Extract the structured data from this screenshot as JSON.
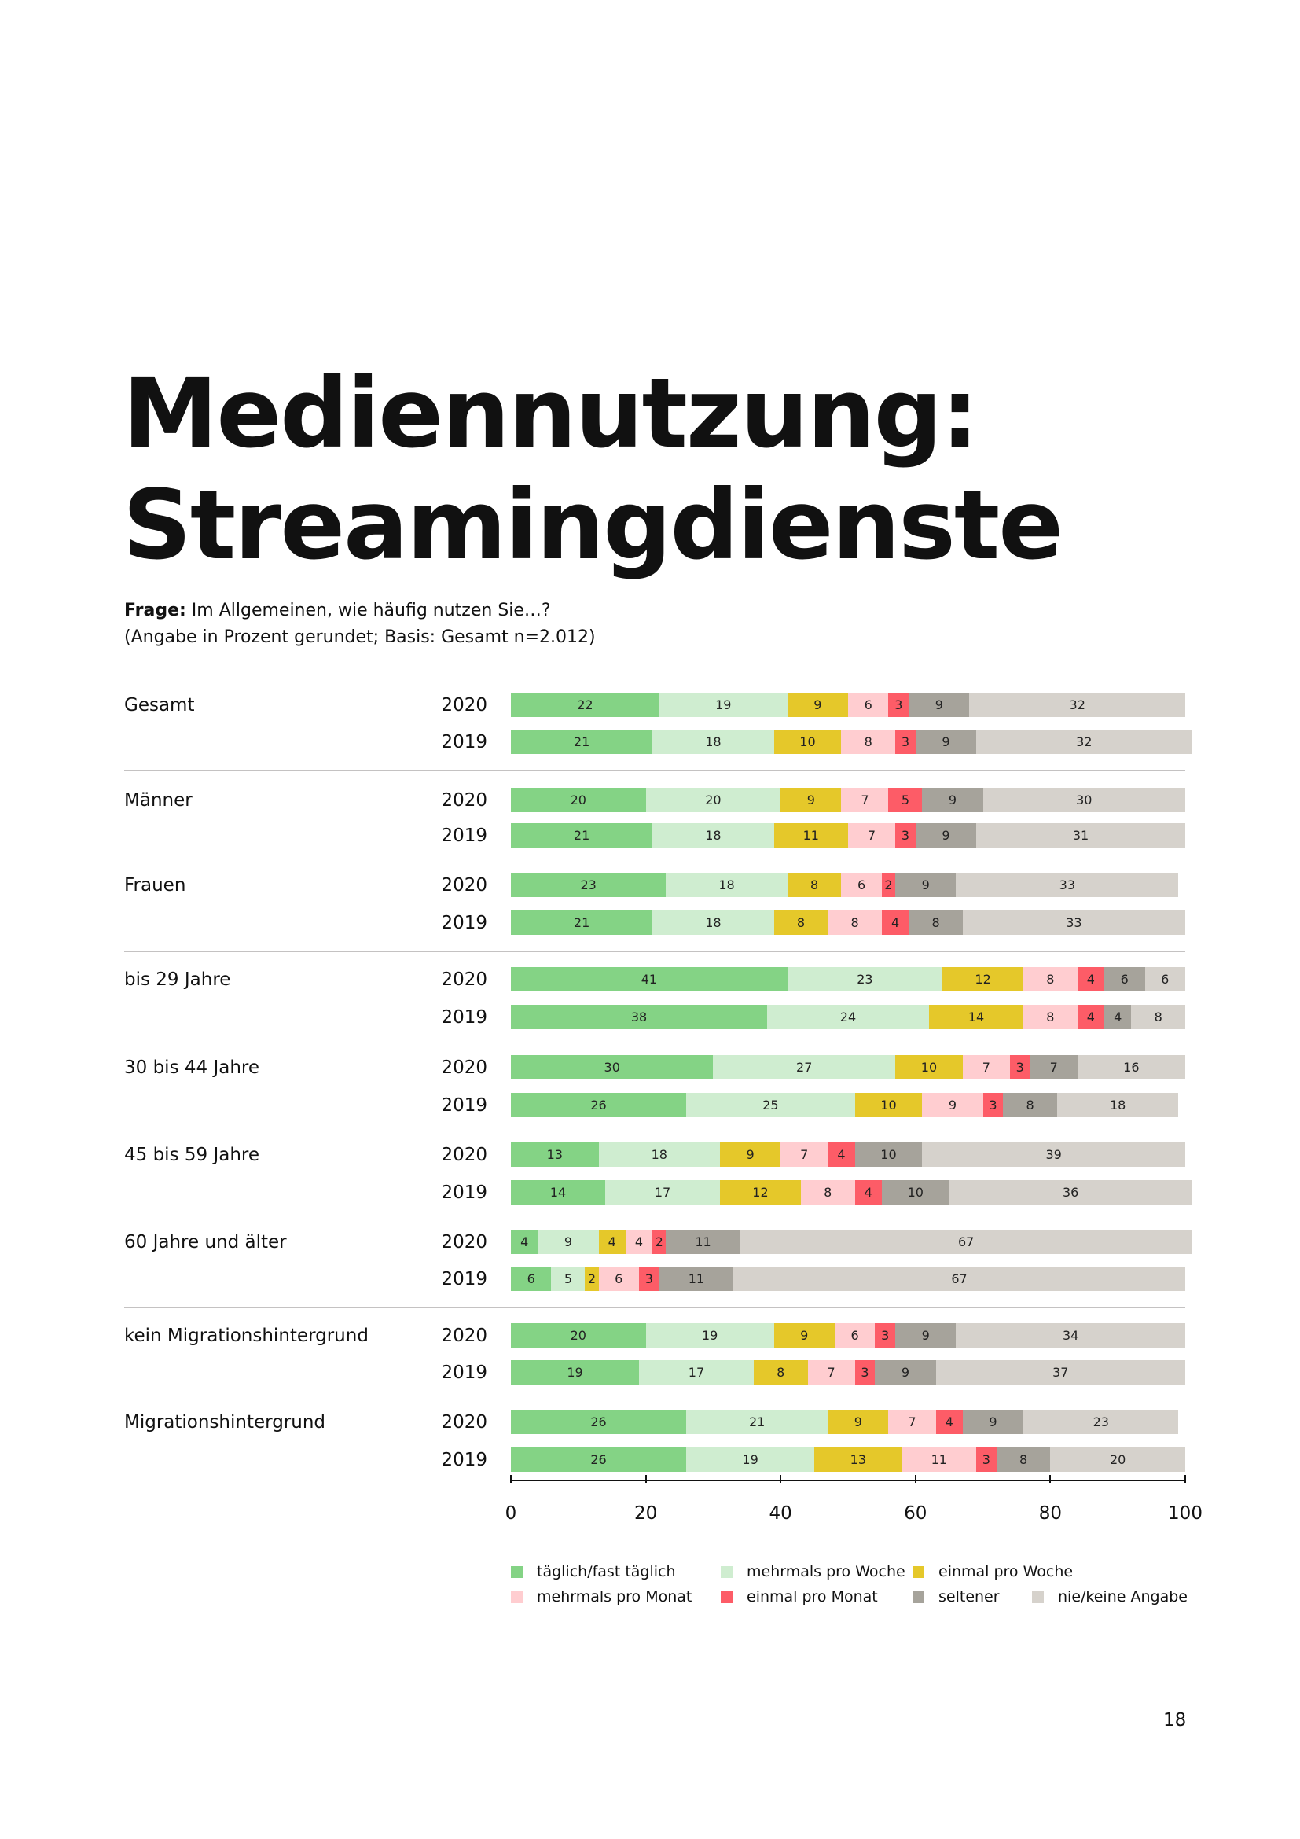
{
  "title_lines": [
    "Mediennutzung:",
    "Streamingdienste"
  ],
  "question": {
    "label": "Frage:",
    "text": " Im Allgemeinen, wie häufig nutzen Sie…?",
    "note": "(Angabe in Prozent gerundet; Basis: Gesamt n=2.012)"
  },
  "page_number": "18",
  "chart_data": {
    "type": "bar",
    "orientation": "horizontal",
    "stacked": true,
    "xlim": [
      0,
      100
    ],
    "xticks": [
      "0",
      "20",
      "40",
      "60",
      "80",
      "100"
    ],
    "legend_position": "bottom",
    "categories_legend": [
      {
        "name": "täglich/fast täglich",
        "color": "#84d385"
      },
      {
        "name": "mehrmals pro Woche",
        "color": "#cfedd0"
      },
      {
        "name": "einmal pro Woche",
        "color": "#e5c82a"
      },
      {
        "name": "mehrmals pro Monat",
        "color": "#ffcdd0"
      },
      {
        "name": "einmal pro Monat",
        "color": "#fd5c67"
      },
      {
        "name": "seltener",
        "color": "#a6a39b"
      },
      {
        "name": "nie/keine Angabe",
        "color": "#d6d2cc"
      }
    ],
    "groups": [
      {
        "label": "Gesamt",
        "rows": [
          {
            "year": "2020",
            "values": [
              22,
              19,
              9,
              6,
              3,
              9,
              32
            ]
          },
          {
            "year": "2019",
            "values": [
              21,
              18,
              10,
              8,
              3,
              9,
              32
            ]
          }
        ]
      },
      {
        "label": "Männer",
        "rows": [
          {
            "year": "2020",
            "values": [
              20,
              20,
              9,
              7,
              5,
              9,
              30
            ]
          },
          {
            "year": "2019",
            "values": [
              21,
              18,
              11,
              7,
              3,
              9,
              31
            ]
          }
        ]
      },
      {
        "label": "Frauen",
        "rows": [
          {
            "year": "2020",
            "values": [
              23,
              18,
              8,
              6,
              2,
              9,
              33
            ]
          },
          {
            "year": "2019",
            "values": [
              21,
              18,
              8,
              8,
              4,
              8,
              33
            ]
          }
        ]
      },
      {
        "label": "bis 29 Jahre",
        "rows": [
          {
            "year": "2020",
            "values": [
              41,
              23,
              12,
              8,
              4,
              6,
              6
            ]
          },
          {
            "year": "2019",
            "values": [
              38,
              24,
              14,
              8,
              4,
              4,
              8
            ]
          }
        ]
      },
      {
        "label": "30 bis 44 Jahre",
        "rows": [
          {
            "year": "2020",
            "values": [
              30,
              27,
              10,
              7,
              3,
              7,
              16
            ]
          },
          {
            "year": "2019",
            "values": [
              26,
              25,
              10,
              9,
              3,
              8,
              18
            ]
          }
        ]
      },
      {
        "label": "45 bis 59 Jahre",
        "rows": [
          {
            "year": "2020",
            "values": [
              13,
              18,
              9,
              7,
              4,
              10,
              39
            ]
          },
          {
            "year": "2019",
            "values": [
              14,
              17,
              12,
              8,
              4,
              10,
              36
            ]
          }
        ]
      },
      {
        "label": "60 Jahre und älter",
        "rows": [
          {
            "year": "2020",
            "values": [
              4,
              9,
              4,
              4,
              2,
              11,
              67
            ]
          },
          {
            "year": "2019",
            "values": [
              6,
              5,
              2,
              6,
              3,
              11,
              67
            ]
          }
        ]
      },
      {
        "label": "kein Migrationshintergrund",
        "rows": [
          {
            "year": "2020",
            "values": [
              20,
              19,
              9,
              6,
              3,
              9,
              34
            ]
          },
          {
            "year": "2019",
            "values": [
              19,
              17,
              8,
              7,
              3,
              9,
              37
            ]
          }
        ]
      },
      {
        "label": "Migrationshintergrund",
        "rows": [
          {
            "year": "2020",
            "values": [
              26,
              21,
              9,
              7,
              4,
              9,
              23
            ]
          },
          {
            "year": "2019",
            "values": [
              26,
              19,
              13,
              11,
              3,
              8,
              20
            ]
          }
        ]
      }
    ]
  }
}
